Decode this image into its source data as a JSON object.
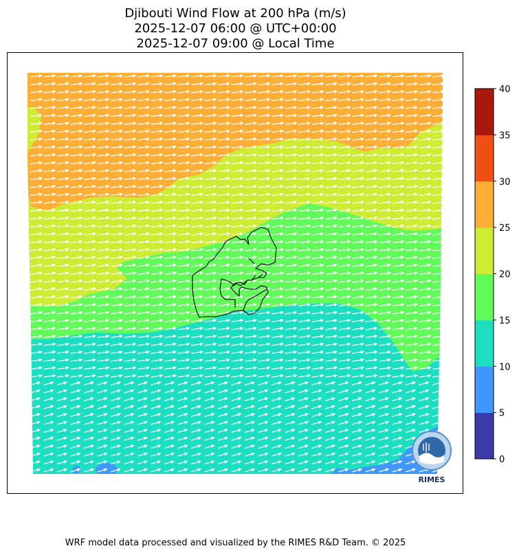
{
  "title": {
    "line1": "Djibouti Wind Flow at 200 hPa (m/s)",
    "line2": "2025-12-07 06:00 @ UTC+00:00",
    "line3": "2025-12-07 09:00 @ Local Time"
  },
  "colorbar": {
    "ticks": [
      "0",
      "5",
      "10",
      "15",
      "20",
      "25",
      "30",
      "35",
      "40"
    ],
    "colors": [
      "#3d3ba8",
      "#3f97ff",
      "#1cdfc2",
      "#62fa5a",
      "#cfec35",
      "#fdae37",
      "#ed5012",
      "#a8180b"
    ]
  },
  "map": {
    "wind_direction": "west-southwest to east-northeast (westerly)",
    "arrow_color": "#ffffff",
    "border_color": "#000000"
  },
  "logo": {
    "label": "RIMES"
  },
  "footer": {
    "credit": "WRF model data processed and visualized by the RIMES R&D Team. © 2025"
  }
}
